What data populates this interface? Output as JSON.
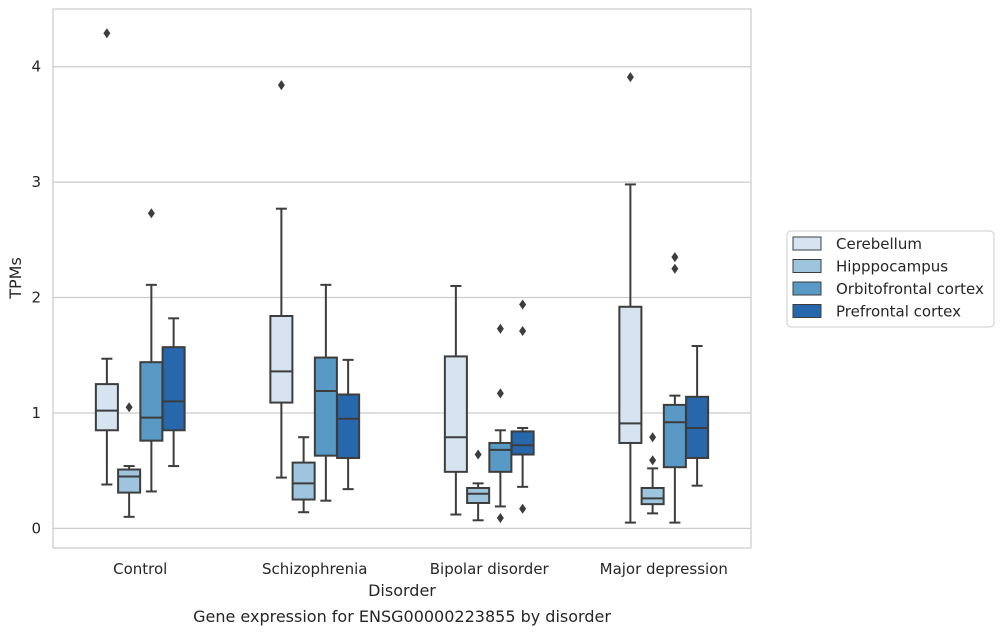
{
  "chart_data": {
    "type": "box",
    "title": "",
    "caption": "Gene expression for ENSG00000223855 by disorder",
    "xlabel": "Disorder",
    "ylabel": "TPMs",
    "ylim": [
      -0.17,
      4.5
    ],
    "yticks": [
      0,
      1,
      2,
      3,
      4
    ],
    "grid": "horizontal",
    "legend_position": "right",
    "categories": [
      "Control",
      "Schizophrenia",
      "Bipolar disorder",
      "Major depression"
    ],
    "series": [
      {
        "name": "Cerebellum",
        "color": "#d6e4f2",
        "boxes": [
          {
            "whislo": 0.38,
            "q1": 0.85,
            "med": 1.02,
            "q3": 1.25,
            "whishi": 1.47,
            "fliers": [
              4.29
            ]
          },
          {
            "whislo": 0.44,
            "q1": 1.09,
            "med": 1.36,
            "q3": 1.84,
            "whishi": 2.77,
            "fliers": [
              3.84
            ]
          },
          {
            "whislo": 0.12,
            "q1": 0.49,
            "med": 0.79,
            "q3": 1.49,
            "whishi": 2.1,
            "fliers": []
          },
          {
            "whislo": 0.05,
            "q1": 0.74,
            "med": 0.91,
            "q3": 1.92,
            "whishi": 2.98,
            "fliers": [
              3.91
            ]
          }
        ]
      },
      {
        "name": "Hipppocampus",
        "color": "#9ec4de",
        "boxes": [
          {
            "whislo": 0.1,
            "q1": 0.31,
            "med": 0.45,
            "q3": 0.51,
            "whishi": 0.54,
            "fliers": [
              1.05
            ]
          },
          {
            "whislo": 0.14,
            "q1": 0.25,
            "med": 0.39,
            "q3": 0.57,
            "whishi": 0.79,
            "fliers": []
          },
          {
            "whislo": 0.07,
            "q1": 0.22,
            "med": 0.3,
            "q3": 0.35,
            "whishi": 0.39,
            "fliers": [
              0.64
            ]
          },
          {
            "whislo": 0.13,
            "q1": 0.21,
            "med": 0.26,
            "q3": 0.35,
            "whishi": 0.52,
            "fliers": [
              0.59,
              0.79
            ]
          }
        ]
      },
      {
        "name": "Orbitofrontal cortex",
        "color": "#5899c6",
        "boxes": [
          {
            "whislo": 0.32,
            "q1": 0.76,
            "med": 0.96,
            "q3": 1.44,
            "whishi": 2.11,
            "fliers": [
              2.73
            ]
          },
          {
            "whislo": 0.24,
            "q1": 0.63,
            "med": 1.19,
            "q3": 1.48,
            "whishi": 2.11,
            "fliers": []
          },
          {
            "whislo": 0.19,
            "q1": 0.49,
            "med": 0.68,
            "q3": 0.74,
            "whishi": 0.85,
            "fliers": [
              0.09,
              1.17,
              1.73
            ]
          },
          {
            "whislo": 0.05,
            "q1": 0.53,
            "med": 0.92,
            "q3": 1.07,
            "whishi": 1.15,
            "fliers": [
              2.25,
              2.35
            ]
          }
        ]
      },
      {
        "name": "Prefrontal cortex",
        "color": "#2767ab",
        "boxes": [
          {
            "whislo": 0.54,
            "q1": 0.85,
            "med": 1.1,
            "q3": 1.57,
            "whishi": 1.82,
            "fliers": []
          },
          {
            "whislo": 0.34,
            "q1": 0.61,
            "med": 0.95,
            "q3": 1.16,
            "whishi": 1.46,
            "fliers": []
          },
          {
            "whislo": 0.36,
            "q1": 0.64,
            "med": 0.72,
            "q3": 0.84,
            "whishi": 0.87,
            "fliers": [
              0.17,
              1.71,
              1.94
            ]
          },
          {
            "whislo": 0.37,
            "q1": 0.61,
            "med": 0.87,
            "q3": 1.14,
            "whishi": 1.58,
            "fliers": []
          }
        ]
      }
    ]
  }
}
